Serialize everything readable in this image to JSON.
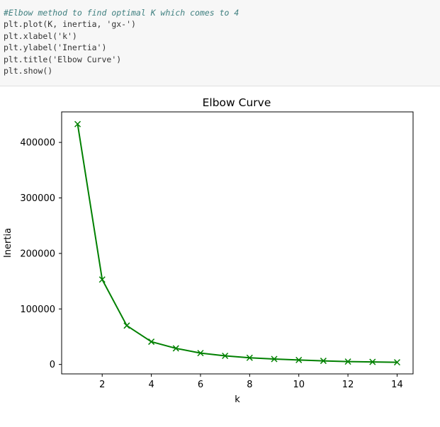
{
  "code_cell": {
    "lines": [
      "#Elbow method to find optimal K which comes to 4",
      "plt.plot(K, inertia, 'gx-')",
      "plt.xlabel('k')",
      "plt.ylabel('Inertia')",
      "plt.title('Elbow Curve')",
      "plt.show()"
    ]
  },
  "chart_data": {
    "type": "line",
    "title": "Elbow Curve",
    "xlabel": "k",
    "ylabel": "Inertia",
    "x": [
      1,
      2,
      3,
      4,
      5,
      6,
      7,
      8,
      9,
      10,
      11,
      12,
      13,
      14
    ],
    "series": [
      {
        "values": [
          433000,
          153000,
          70000,
          41000,
          29000,
          20500,
          15500,
          12000,
          9800,
          8000,
          6500,
          5200,
          4600,
          3900
        ],
        "color": "#008000",
        "marker": "x",
        "linestyle": "solid"
      }
    ],
    "xticks": [
      2,
      4,
      6,
      8,
      10,
      12,
      14
    ],
    "yticks": [
      0,
      100000,
      200000,
      300000,
      400000
    ],
    "xlim": [
      0.35,
      14.65
    ],
    "ylim": [
      -17000,
      455000
    ],
    "grid": false,
    "legend": "none"
  }
}
